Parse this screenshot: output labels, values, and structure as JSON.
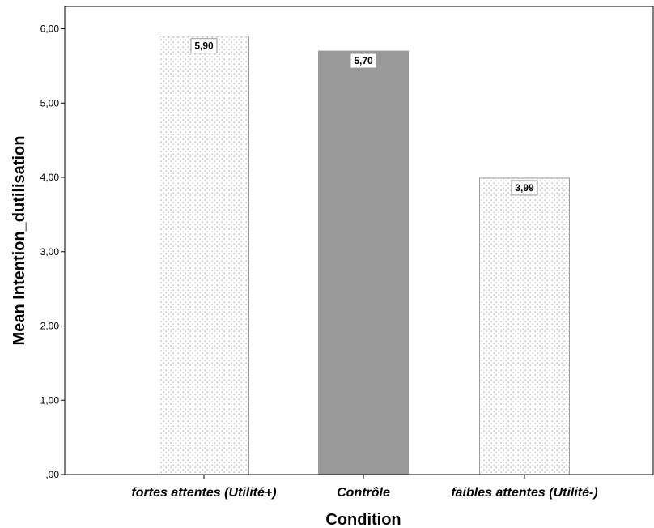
{
  "chart_data": {
    "type": "bar",
    "categories": [
      "fortes attentes (Utilité+)",
      "Contrôle",
      "faibles attentes (Utilité-)"
    ],
    "values": [
      5.9,
      5.7,
      3.99
    ],
    "data_labels": [
      "5,90",
      "5,70",
      "3,99"
    ],
    "bar_styles": [
      "dotted",
      "solid",
      "dotted"
    ],
    "xlabel": "Condition",
    "ylabel": "Mean Intention_dutilisation",
    "ylim": [
      0,
      6.3
    ],
    "yticks": [
      0,
      1,
      2,
      3,
      4,
      5,
      6
    ],
    "ytick_labels": [
      ",00",
      "1,00",
      "2,00",
      "3,00",
      "4,00",
      "5,00",
      "6,00"
    ],
    "grid": false,
    "colors": {
      "solid_bar": "#9a9a9a",
      "dotted_bar_fill": "#ffffff",
      "dotted_bar_dots": "#a6a6a6",
      "bar_border": "#9a9a9a",
      "axis": "#000000"
    }
  }
}
